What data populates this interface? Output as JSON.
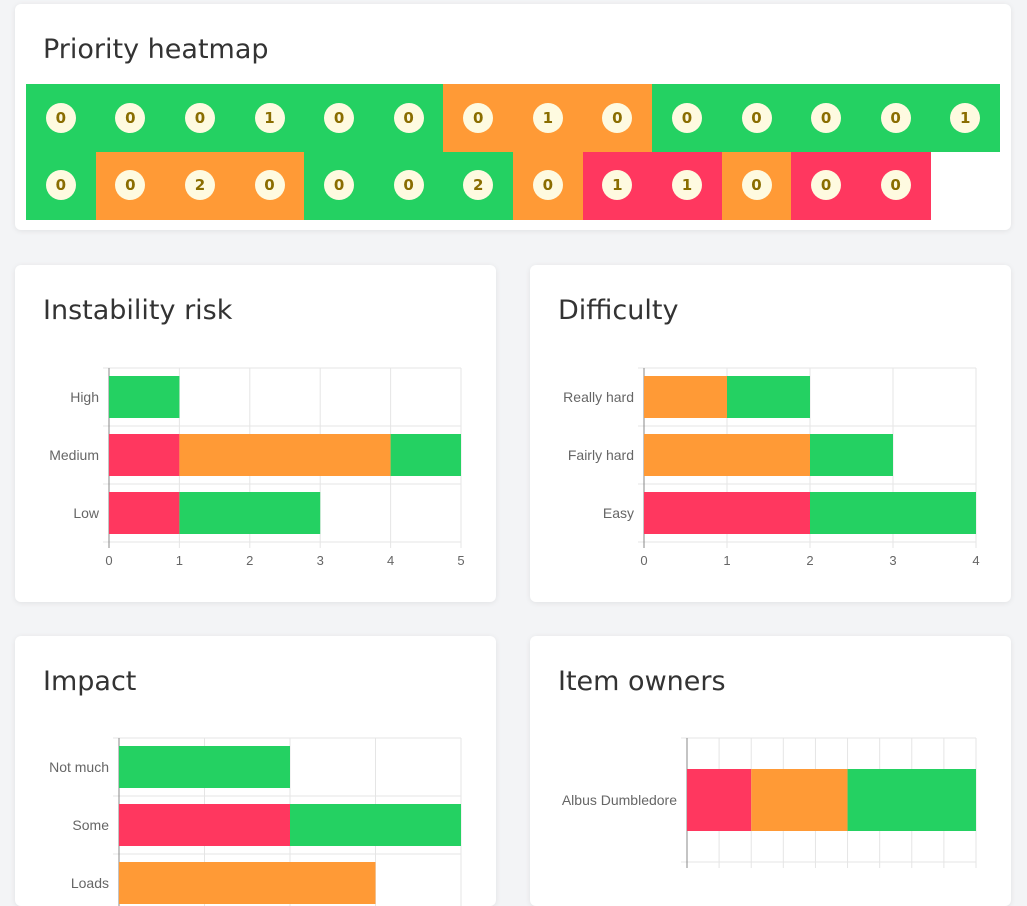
{
  "colors": {
    "red": "#ff375f",
    "orange": "#ff9a36",
    "green": "#24d162",
    "grid": "#e5e5e5",
    "axis": "#888888",
    "tick": "#666666"
  },
  "heatmap": {
    "title": "Priority heatmap",
    "rows": [
      [
        {
          "color": "green",
          "values": [
            "0",
            "0",
            "0",
            "1",
            "0",
            "0"
          ]
        },
        {
          "color": "orange",
          "values": [
            "0",
            "1",
            "0"
          ]
        },
        {
          "color": "green",
          "values": [
            "0",
            "0",
            "0",
            "0",
            "1"
          ]
        }
      ],
      [
        {
          "color": "green",
          "values": [
            "0"
          ]
        },
        {
          "color": "orange",
          "values": [
            "0",
            "2",
            "0"
          ]
        },
        {
          "color": "green",
          "values": [
            "0",
            "0",
            "2"
          ]
        },
        {
          "color": "orange",
          "values": [
            "0"
          ]
        },
        {
          "color": "red",
          "values": [
            "1",
            "1"
          ]
        },
        {
          "color": "orange",
          "values": [
            "0"
          ]
        },
        {
          "color": "red",
          "values": [
            "0",
            "0"
          ]
        }
      ]
    ]
  },
  "cards": {
    "instability": {
      "title": "Instability risk"
    },
    "difficulty": {
      "title": "Difficulty"
    },
    "impact": {
      "title": "Impact"
    },
    "owners": {
      "title": "Item owners"
    }
  },
  "chart_data": [
    {
      "id": "instability",
      "type": "bar",
      "orientation": "horizontal",
      "stacked": true,
      "categories": [
        "High",
        "Medium",
        "Low"
      ],
      "series": [
        {
          "color": "#ff375f",
          "values": [
            0,
            1,
            1
          ]
        },
        {
          "color": "#ff9a36",
          "values": [
            0,
            3,
            0
          ]
        },
        {
          "color": "#24d162",
          "values": [
            1,
            1,
            2
          ]
        }
      ],
      "xlim": [
        0,
        5
      ],
      "xticks": [
        "0",
        "1",
        "2",
        "3",
        "4",
        "5"
      ],
      "grid": true
    },
    {
      "id": "difficulty",
      "type": "bar",
      "orientation": "horizontal",
      "stacked": true,
      "categories": [
        "Really hard",
        "Fairly hard",
        "Easy"
      ],
      "series": [
        {
          "color": "#ff375f",
          "values": [
            0,
            0,
            2
          ]
        },
        {
          "color": "#ff9a36",
          "values": [
            1,
            2,
            0
          ]
        },
        {
          "color": "#24d162",
          "values": [
            1,
            1,
            2
          ]
        }
      ],
      "xlim": [
        0,
        4
      ],
      "xticks": [
        "0",
        "1",
        "2",
        "3",
        "4"
      ],
      "grid": true
    },
    {
      "id": "impact",
      "type": "bar",
      "orientation": "horizontal",
      "stacked": true,
      "categories": [
        "Not much",
        "Some",
        "Loads"
      ],
      "series": [
        {
          "color": "#ff375f",
          "values": [
            0,
            2,
            0
          ]
        },
        {
          "color": "#ff9a36",
          "values": [
            0,
            0,
            3
          ]
        },
        {
          "color": "#24d162",
          "values": [
            2,
            2,
            0
          ]
        }
      ],
      "xlim": [
        0,
        4
      ],
      "xticks": [],
      "grid": true
    },
    {
      "id": "owners",
      "type": "bar",
      "orientation": "horizontal",
      "stacked": true,
      "categories": [
        "Albus Dumbledore"
      ],
      "series": [
        {
          "color": "#ff375f",
          "values": [
            2
          ]
        },
        {
          "color": "#ff9a36",
          "values": [
            3
          ]
        },
        {
          "color": "#24d162",
          "values": [
            4
          ]
        }
      ],
      "xlim": [
        0,
        9
      ],
      "xticks": [],
      "grid": true
    }
  ]
}
